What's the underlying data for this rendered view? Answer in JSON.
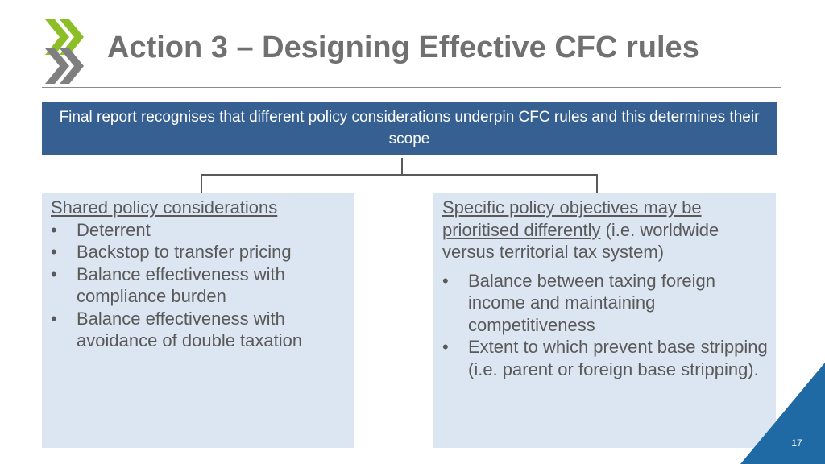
{
  "slide": {
    "title": "Action 3 – Designing Effective CFC rules",
    "banner_text": "Final report recognises that different policy considerations underpin CFC rules and this determines their scope",
    "left_box": {
      "heading": "Shared policy considerations",
      "bullets": [
        "Deterrent",
        "Backstop to transfer pricing",
        "Balance effectiveness with compliance burden",
        "Balance effectiveness with avoidance of double taxation"
      ]
    },
    "right_box": {
      "heading_underlined": "Specific policy objectives may be prioritised differently",
      "heading_rest": " (i.e. worldwide versus territorial tax system)",
      "bullets": [
        "Balance between taxing foreign income and maintaining competitiveness",
        "Extent to which prevent base stripping (i.e. parent or foreign base stripping)."
      ]
    },
    "bullet_char": "•",
    "page_number": "17"
  },
  "colors": {
    "banner": "#376092",
    "box_fill": "#dce6f2",
    "logo_green": "#8cbf26",
    "logo_grey": "#7f7f7f",
    "corner_blue": "#1f6aa5"
  },
  "icons": {
    "logo": "oecd-chevron-logo",
    "corner": "corner-triangle-decoration"
  }
}
